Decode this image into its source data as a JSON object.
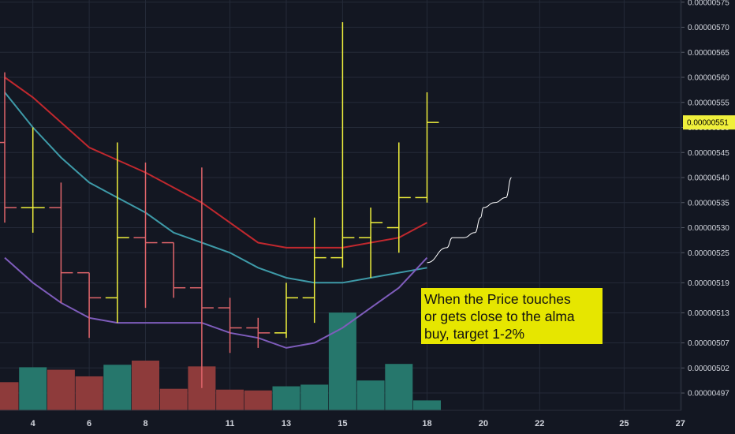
{
  "chart_data": {
    "type": "ohlc",
    "title": "",
    "xlabel": "",
    "ylabel": "",
    "ylim": [
      4.93e-06,
      5.76e-06
    ],
    "xlim": [
      3,
      28
    ],
    "grid": true,
    "background": "#131722",
    "colors": {
      "up": "#f0f03c",
      "down": "#e0656b",
      "vol_up": "#26776c",
      "vol_down": "#8e3b3b",
      "ma_fast": "#c0282e",
      "ma_mid": "#3e9aa8",
      "ma_slow": "#7e5cbb",
      "grid": "#242a38",
      "tag": "#f0f03c",
      "note_bg": "#e6e600"
    },
    "x_ticks": [
      "4",
      "6",
      "8",
      "11",
      "13",
      "15",
      "18",
      "20",
      "22",
      "25",
      "27"
    ],
    "y_ticks": [
      "0.00000575",
      "0.00000570",
      "0.00000565",
      "0.00000560",
      "0.00000555",
      "0.00000550",
      "0.00000545",
      "0.00000540",
      "0.00000535",
      "0.00000530",
      "0.00000525",
      "0.00000519",
      "0.00000513",
      "0.00000507",
      "0.00000502",
      "0.00000497"
    ],
    "last_price": "0.00000551",
    "bars": [
      {
        "x": 3,
        "o": 5.47e-06,
        "h": 5.61e-06,
        "l": 5.31e-06,
        "c": 5.34e-06
      },
      {
        "x": 4,
        "o": 5.34e-06,
        "h": 5.5e-06,
        "l": 5.29e-06,
        "c": 5.34e-06
      },
      {
        "x": 5,
        "o": 5.34e-06,
        "h": 5.39e-06,
        "l": 5.15e-06,
        "c": 5.21e-06
      },
      {
        "x": 6,
        "o": 5.21e-06,
        "h": 5.21e-06,
        "l": 5.08e-06,
        "c": 5.16e-06
      },
      {
        "x": 7,
        "o": 5.16e-06,
        "h": 5.47e-06,
        "l": 5.11e-06,
        "c": 5.28e-06
      },
      {
        "x": 8,
        "o": 5.28e-06,
        "h": 5.43e-06,
        "l": 5.14e-06,
        "c": 5.27e-06
      },
      {
        "x": 9,
        "o": 5.27e-06,
        "h": 5.27e-06,
        "l": 5.16e-06,
        "c": 5.18e-06
      },
      {
        "x": 10,
        "o": 5.18e-06,
        "h": 5.42e-06,
        "l": 4.98e-06,
        "c": 5.14e-06
      },
      {
        "x": 11,
        "o": 5.14e-06,
        "h": 5.16e-06,
        "l": 5.05e-06,
        "c": 5.1e-06
      },
      {
        "x": 12,
        "o": 5.1e-06,
        "h": 5.12e-06,
        "l": 5.06e-06,
        "c": 5.09e-06
      },
      {
        "x": 13,
        "o": 5.09e-06,
        "h": 5.19e-06,
        "l": 5.08e-06,
        "c": 5.16e-06
      },
      {
        "x": 14,
        "o": 5.16e-06,
        "h": 5.32e-06,
        "l": 5.11e-06,
        "c": 5.24e-06
      },
      {
        "x": 15,
        "o": 5.24e-06,
        "h": 5.71e-06,
        "l": 5.22e-06,
        "c": 5.28e-06
      },
      {
        "x": 16,
        "o": 5.28e-06,
        "h": 5.34e-06,
        "l": 5.2e-06,
        "c": 5.31e-06
      },
      {
        "x": 17,
        "o": 5.3e-06,
        "h": 5.47e-06,
        "l": 5.25e-06,
        "c": 5.36e-06
      },
      {
        "x": 18,
        "o": 5.36e-06,
        "h": 5.57e-06,
        "l": 5.35e-06,
        "c": 5.51e-06
      }
    ],
    "volume": [
      {
        "x": 3,
        "v": 0.34,
        "up": false
      },
      {
        "x": 4,
        "v": 0.52,
        "up": true
      },
      {
        "x": 5,
        "v": 0.49,
        "up": false
      },
      {
        "x": 6,
        "v": 0.41,
        "up": false
      },
      {
        "x": 7,
        "v": 0.55,
        "up": true
      },
      {
        "x": 8,
        "v": 0.6,
        "up": false
      },
      {
        "x": 9,
        "v": 0.26,
        "up": false
      },
      {
        "x": 10,
        "v": 0.53,
        "up": false
      },
      {
        "x": 11,
        "v": 0.25,
        "up": false
      },
      {
        "x": 12,
        "v": 0.24,
        "up": false
      },
      {
        "x": 13,
        "v": 0.29,
        "up": true
      },
      {
        "x": 14,
        "v": 0.31,
        "up": true
      },
      {
        "x": 15,
        "v": 1.18,
        "up": true
      },
      {
        "x": 16,
        "v": 0.36,
        "up": true
      },
      {
        "x": 17,
        "v": 0.56,
        "up": true
      },
      {
        "x": 18,
        "v": 0.12,
        "up": true
      }
    ],
    "series": [
      {
        "key": "ma_fast",
        "points": [
          [
            3,
            5.6e-06
          ],
          [
            4,
            5.56e-06
          ],
          [
            6,
            5.46e-06
          ],
          [
            8,
            5.41e-06
          ],
          [
            10,
            5.35e-06
          ],
          [
            12,
            5.27e-06
          ],
          [
            13,
            5.26e-06
          ],
          [
            14,
            5.26e-06
          ],
          [
            15,
            5.26e-06
          ],
          [
            16,
            5.27e-06
          ],
          [
            17,
            5.28e-06
          ],
          [
            18,
            5.31e-06
          ]
        ]
      },
      {
        "key": "ma_mid",
        "points": [
          [
            3,
            5.57e-06
          ],
          [
            4,
            5.5e-06
          ],
          [
            5,
            5.44e-06
          ],
          [
            6,
            5.39e-06
          ],
          [
            7,
            5.36e-06
          ],
          [
            8,
            5.33e-06
          ],
          [
            9,
            5.29e-06
          ],
          [
            10,
            5.27e-06
          ],
          [
            11,
            5.25e-06
          ],
          [
            12,
            5.22e-06
          ],
          [
            13,
            5.2e-06
          ],
          [
            14,
            5.19e-06
          ],
          [
            15,
            5.19e-06
          ],
          [
            16,
            5.2e-06
          ],
          [
            17,
            5.21e-06
          ],
          [
            18,
            5.22e-06
          ]
        ]
      },
      {
        "key": "ma_slow",
        "points": [
          [
            3,
            5.24e-06
          ],
          [
            4,
            5.19e-06
          ],
          [
            5,
            5.15e-06
          ],
          [
            6,
            5.12e-06
          ],
          [
            7,
            5.11e-06
          ],
          [
            9,
            5.11e-06
          ],
          [
            10,
            5.11e-06
          ],
          [
            11,
            5.09e-06
          ],
          [
            12,
            5.08e-06
          ],
          [
            13,
            5.06e-06
          ],
          [
            14,
            5.07e-06
          ],
          [
            15,
            5.1e-06
          ],
          [
            16,
            5.14e-06
          ],
          [
            17,
            5.18e-06
          ],
          [
            18,
            5.24e-06
          ]
        ]
      }
    ],
    "projection": [
      [
        18,
        5.23e-06
      ],
      [
        18.7,
        5.26e-06
      ],
      [
        18.9,
        5.28e-06
      ],
      [
        19.3,
        5.28e-06
      ],
      [
        19.7,
        5.29e-06
      ],
      [
        19.9,
        5.32e-06
      ],
      [
        20,
        5.34e-06
      ],
      [
        20.4,
        5.35e-06
      ],
      [
        20.8,
        5.36e-06
      ],
      [
        21,
        5.4e-06
      ]
    ],
    "annotation": {
      "lines": [
        "When the Price touches",
        "or gets close to the alma",
        "buy, target 1-2%"
      ]
    }
  }
}
